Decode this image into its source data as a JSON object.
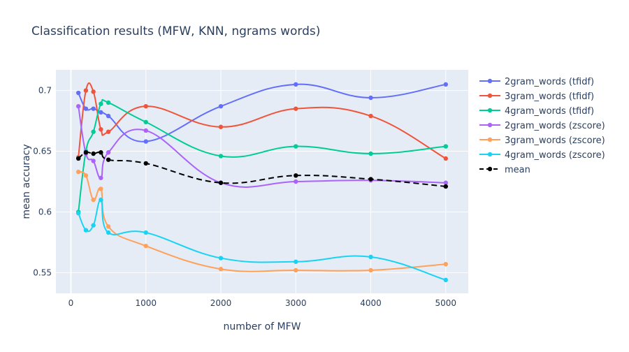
{
  "chart_data": {
    "type": "line",
    "title": "Classification results (MFW, KNN, ngrams words)",
    "xlabel": "number of MFW",
    "ylabel": "mean accuracy",
    "xlim": [
      -200,
      5300
    ],
    "ylim": [
      0.533,
      0.717
    ],
    "xticks": [
      0,
      1000,
      2000,
      3000,
      4000,
      5000
    ],
    "xtick_labels": [
      "0",
      "1000",
      "2000",
      "3000",
      "4000",
      "5000"
    ],
    "yticks": [
      0.55,
      0.6,
      0.65,
      0.7
    ],
    "ytick_labels": [
      "0.55",
      "0.6",
      "0.65",
      "0.7"
    ],
    "grid": true,
    "legend_position": "right",
    "plot_background": "#e5ecf6",
    "x": [
      100,
      200,
      300,
      400,
      500,
      1000,
      2000,
      3000,
      4000,
      5000
    ],
    "series": [
      {
        "name": "2gram_words (tfidf)",
        "color": "#636efa",
        "dash": "solid",
        "values": [
          0.698,
          0.685,
          0.685,
          0.682,
          0.679,
          0.658,
          0.687,
          0.705,
          0.694,
          0.705
        ]
      },
      {
        "name": "3gram_words (tfidf)",
        "color": "#ef553b",
        "dash": "solid",
        "values": [
          0.645,
          0.7,
          0.699,
          0.668,
          0.666,
          0.687,
          0.67,
          0.685,
          0.679,
          0.644
        ]
      },
      {
        "name": "4gram_words (tfidf)",
        "color": "#00cc96",
        "dash": "solid",
        "values": [
          0.6,
          0.65,
          0.666,
          0.689,
          0.69,
          0.674,
          0.646,
          0.654,
          0.648,
          0.654
        ]
      },
      {
        "name": "2gram_words (zscore)",
        "color": "#ab63fa",
        "dash": "solid",
        "values": [
          0.687,
          0.648,
          0.642,
          0.628,
          0.649,
          0.667,
          0.624,
          0.625,
          0.626,
          0.624
        ]
      },
      {
        "name": "3gram_words (zscore)",
        "color": "#ffa15a",
        "dash": "solid",
        "values": [
          0.633,
          0.63,
          0.61,
          0.619,
          0.588,
          0.572,
          0.553,
          0.552,
          0.552,
          0.557
        ]
      },
      {
        "name": "4gram_words (zscore)",
        "color": "#19d3f3",
        "dash": "solid",
        "values": [
          0.599,
          0.585,
          0.589,
          0.61,
          0.583,
          0.583,
          0.562,
          0.559,
          0.563,
          0.544
        ]
      },
      {
        "name": "mean",
        "color": "#000000",
        "dash": "dashed",
        "values": [
          0.644,
          0.649,
          0.648,
          0.649,
          0.643,
          0.64,
          0.624,
          0.63,
          0.627,
          0.621
        ]
      }
    ]
  }
}
